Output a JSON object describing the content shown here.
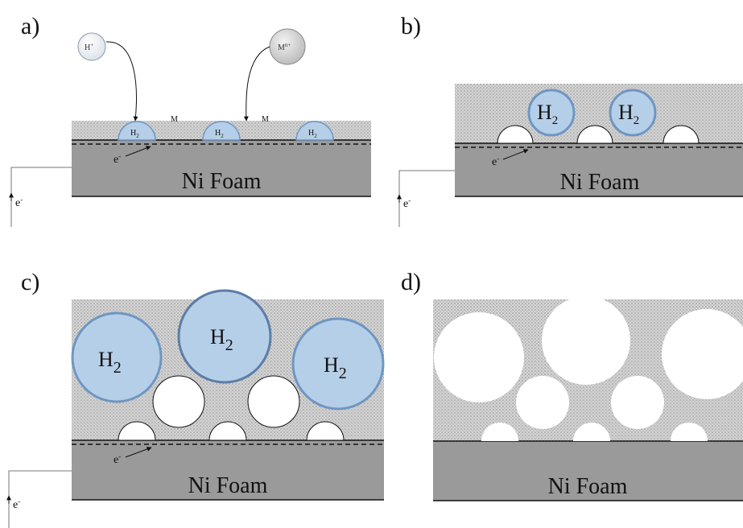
{
  "panels": {
    "a": {
      "label": "a)",
      "substrate": "Ni Foam",
      "ion_h": "H",
      "ion_h_sup": "+",
      "ion_m": "M",
      "ion_m_sup": "n+",
      "metal_1": "M",
      "metal_2": "M",
      "bubble_label": "H",
      "bubble_sub": "2",
      "electron_inner": "e",
      "electron_inner_sup": "-",
      "electron_outer": "e",
      "electron_outer_sup": "-"
    },
    "b": {
      "label": "b)",
      "substrate": "Ni Foam",
      "bubble_label": "H",
      "bubble_sub": "2",
      "electron_inner": "e",
      "electron_inner_sup": "-",
      "electron_outer": "e",
      "electron_outer_sup": "-"
    },
    "c": {
      "label": "c)",
      "substrate": "Ni Foam",
      "bubble_label": "H",
      "bubble_sub": "2",
      "electron_inner": "e",
      "electron_inner_sup": "-",
      "electron_outer": "e",
      "electron_outer_sup": "-"
    },
    "d": {
      "label": "d)",
      "substrate": "Ni Foam"
    }
  },
  "colors": {
    "substrate": "#9a9a9a",
    "deposit": "#c9c9c9",
    "bubble_fill": "#b6cfe8",
    "bubble_edge": "#6f96c2",
    "pore": "#ffffff",
    "line": "#111111"
  }
}
